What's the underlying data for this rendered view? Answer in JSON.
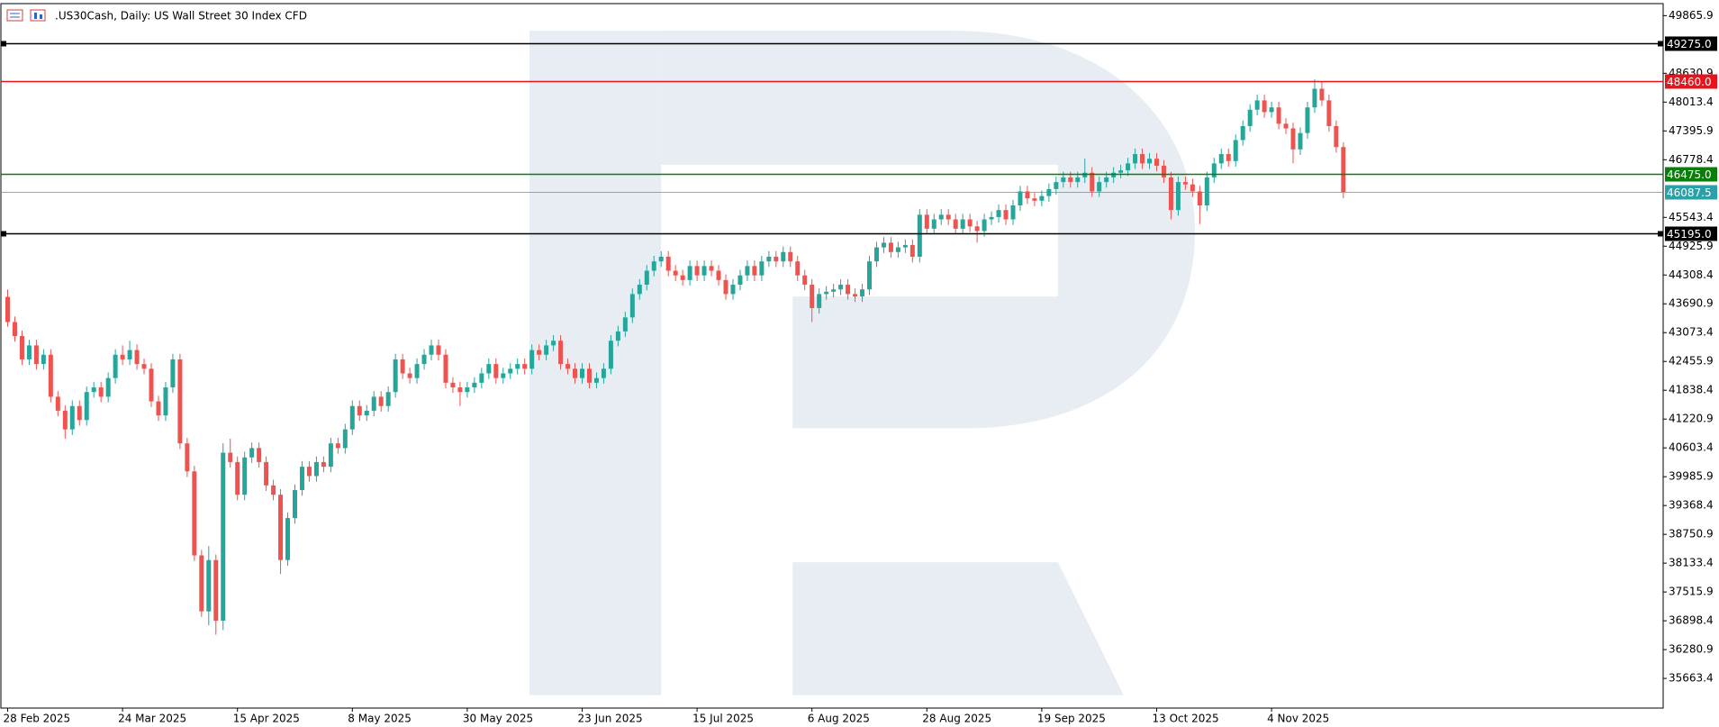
{
  "chart_data": {
    "type": "candlestick",
    "title": ".US30Cash, Daily:  US Wall Street 30 Index CFD",
    "up_color": "#26a69a",
    "down_color": "#ef5350",
    "ylim": [
      35028,
      50124
    ],
    "yticks": [
      35663.4,
      36280.9,
      36898.4,
      37515.9,
      38133.4,
      38750.9,
      39368.4,
      39985.9,
      40603.4,
      41220.9,
      41838.4,
      42455.9,
      43073.4,
      43690.9,
      44308.4,
      44925.9,
      45543.4,
      46778.4,
      47395.9,
      48013.4,
      48630.9,
      49865.9
    ],
    "levels": [
      {
        "value": 49275,
        "label": "49275.0",
        "color": "#000000"
      },
      {
        "value": 48460,
        "label": "48460.0",
        "color": "#e8141c"
      },
      {
        "value": 46475,
        "label": "46475.0",
        "color": "#0a7d0a"
      },
      {
        "value": 46087.5,
        "label": "46087.5",
        "color": "#2aa0a8"
      },
      {
        "value": 45195,
        "label": "45195.0",
        "color": "#000000"
      }
    ],
    "categories": [
      "28 Feb 2025",
      null,
      null,
      null,
      null,
      null,
      null,
      null,
      null,
      null,
      null,
      null,
      null,
      null,
      null,
      null,
      "24 Mar 2025",
      null,
      null,
      null,
      null,
      null,
      null,
      null,
      null,
      null,
      null,
      null,
      null,
      null,
      null,
      null,
      "15 Apr 2025",
      null,
      null,
      null,
      null,
      null,
      null,
      null,
      null,
      null,
      null,
      null,
      null,
      null,
      null,
      null,
      "8 May 2025",
      null,
      null,
      null,
      null,
      null,
      null,
      null,
      null,
      null,
      null,
      null,
      null,
      null,
      null,
      null,
      "30 May 2025",
      null,
      null,
      null,
      null,
      null,
      null,
      null,
      null,
      null,
      null,
      null,
      null,
      null,
      null,
      null,
      "23 Jun 2025",
      null,
      null,
      null,
      null,
      null,
      null,
      null,
      null,
      null,
      null,
      null,
      null,
      null,
      null,
      null,
      "15 Jul 2025",
      null,
      null,
      null,
      null,
      null,
      null,
      null,
      null,
      null,
      null,
      null,
      null,
      null,
      null,
      null,
      "6 Aug 2025",
      null,
      null,
      null,
      null,
      null,
      null,
      null,
      null,
      null,
      null,
      null,
      null,
      null,
      null,
      null,
      "28 Aug 2025",
      null,
      null,
      null,
      null,
      null,
      null,
      null,
      null,
      null,
      null,
      null,
      null,
      null,
      null,
      null,
      "19 Sep 2025",
      null,
      null,
      null,
      null,
      null,
      null,
      null,
      null,
      null,
      null,
      null,
      null,
      null,
      null,
      null,
      "13 Oct 2025",
      null,
      null,
      null,
      null,
      null,
      null,
      null,
      null,
      null,
      null,
      null,
      null,
      null,
      null,
      null,
      "4 Nov 2025",
      null,
      null,
      null,
      null,
      null,
      null,
      null,
      null,
      null,
      null
    ],
    "ohlc": [
      [
        43840,
        44000,
        43200,
        43300
      ],
      [
        43300,
        43420,
        42880,
        43000
      ],
      [
        43000,
        43120,
        42380,
        42500
      ],
      [
        42500,
        42920,
        42380,
        42800
      ],
      [
        42800,
        42920,
        42280,
        42400
      ],
      [
        42400,
        42720,
        42280,
        42600
      ],
      [
        42600,
        42720,
        41580,
        41700
      ],
      [
        41700,
        41820,
        41280,
        41400
      ],
      [
        41400,
        41520,
        40800,
        41000
      ],
      [
        41000,
        41620,
        40880,
        41500
      ],
      [
        41500,
        41620,
        41080,
        41200
      ],
      [
        41200,
        41920,
        41080,
        41800
      ],
      [
        41800,
        42020,
        41680,
        41900
      ],
      [
        41900,
        42020,
        41580,
        41700
      ],
      [
        41700,
        42220,
        41580,
        42100
      ],
      [
        42100,
        42720,
        41980,
        42600
      ],
      [
        42600,
        42800,
        42380,
        42500
      ],
      [
        42500,
        42900,
        42380,
        42700
      ],
      [
        42700,
        42820,
        42280,
        42400
      ],
      [
        42400,
        42520,
        42180,
        42300
      ],
      [
        42300,
        42420,
        41480,
        41600
      ],
      [
        41600,
        41720,
        41180,
        41300
      ],
      [
        41300,
        42020,
        41180,
        41900
      ],
      [
        41900,
        42620,
        41780,
        42500
      ],
      [
        42500,
        42620,
        40580,
        40700
      ],
      [
        40700,
        40820,
        39980,
        40100
      ],
      [
        40100,
        40220,
        38180,
        38300
      ],
      [
        38300,
        38420,
        36980,
        37100
      ],
      [
        37100,
        38500,
        36800,
        38200
      ],
      [
        38200,
        38320,
        36600,
        36900
      ],
      [
        36900,
        40700,
        36700,
        40500
      ],
      [
        40500,
        40800,
        40180,
        40300
      ],
      [
        40300,
        40420,
        39480,
        39600
      ],
      [
        39600,
        40520,
        39480,
        40400
      ],
      [
        40400,
        40720,
        40280,
        40600
      ],
      [
        40600,
        40720,
        40180,
        40300
      ],
      [
        40300,
        40420,
        39680,
        39800
      ],
      [
        39800,
        39920,
        39480,
        39600
      ],
      [
        39600,
        39720,
        37900,
        38200
      ],
      [
        38200,
        39220,
        38080,
        39100
      ],
      [
        39100,
        39820,
        38980,
        39700
      ],
      [
        39700,
        40320,
        39580,
        40200
      ],
      [
        40200,
        40320,
        39880,
        40000
      ],
      [
        40000,
        40420,
        39880,
        40300
      ],
      [
        40300,
        40420,
        40080,
        40200
      ],
      [
        40200,
        40820,
        40080,
        40700
      ],
      [
        40700,
        40820,
        40480,
        40600
      ],
      [
        40600,
        41120,
        40480,
        41000
      ],
      [
        41000,
        41620,
        40880,
        41500
      ],
      [
        41500,
        41620,
        41180,
        41300
      ],
      [
        41300,
        41520,
        41180,
        41400
      ],
      [
        41400,
        41820,
        41280,
        41700
      ],
      [
        41700,
        41820,
        41380,
        41500
      ],
      [
        41500,
        41920,
        41380,
        41800
      ],
      [
        41800,
        42620,
        41680,
        42500
      ],
      [
        42500,
        42620,
        42080,
        42200
      ],
      [
        42200,
        42320,
        41980,
        42100
      ],
      [
        42100,
        42520,
        41980,
        42400
      ],
      [
        42400,
        42720,
        42280,
        42600
      ],
      [
        42600,
        42920,
        42480,
        42800
      ],
      [
        42800,
        42920,
        42480,
        42600
      ],
      [
        42600,
        42720,
        41880,
        42000
      ],
      [
        42000,
        42120,
        41780,
        41900
      ],
      [
        41900,
        42020,
        41500,
        41800
      ],
      [
        41800,
        42020,
        41680,
        41900
      ],
      [
        41900,
        42120,
        41780,
        42000
      ],
      [
        42000,
        42320,
        41880,
        42200
      ],
      [
        42200,
        42520,
        42080,
        42400
      ],
      [
        42400,
        42520,
        41980,
        42100
      ],
      [
        42100,
        42320,
        41980,
        42200
      ],
      [
        42200,
        42420,
        42080,
        42300
      ],
      [
        42300,
        42520,
        42180,
        42400
      ],
      [
        42400,
        42520,
        42180,
        42300
      ],
      [
        42300,
        42820,
        42180,
        42700
      ],
      [
        42700,
        42820,
        42480,
        42600
      ],
      [
        42600,
        42920,
        42480,
        42800
      ],
      [
        42800,
        43020,
        42680,
        42900
      ],
      [
        42900,
        43020,
        42280,
        42400
      ],
      [
        42400,
        42520,
        42180,
        42300
      ],
      [
        42300,
        42420,
        41980,
        42100
      ],
      [
        42100,
        42420,
        41980,
        42300
      ],
      [
        42300,
        42420,
        41880,
        42000
      ],
      [
        42000,
        42220,
        41880,
        42100
      ],
      [
        42100,
        42420,
        41980,
        42300
      ],
      [
        42300,
        43020,
        42180,
        42900
      ],
      [
        42900,
        43220,
        42780,
        43100
      ],
      [
        43100,
        43520,
        42980,
        43400
      ],
      [
        43400,
        44020,
        43280,
        43900
      ],
      [
        43900,
        44220,
        43780,
        44100
      ],
      [
        44100,
        44520,
        43980,
        44400
      ],
      [
        44400,
        44720,
        44280,
        44600
      ],
      [
        44600,
        44820,
        44480,
        44700
      ],
      [
        44700,
        44820,
        44280,
        44400
      ],
      [
        44400,
        44520,
        44180,
        44300
      ],
      [
        44300,
        44420,
        44080,
        44200
      ],
      [
        44200,
        44620,
        44080,
        44500
      ],
      [
        44500,
        44620,
        44180,
        44300
      ],
      [
        44300,
        44620,
        44180,
        44500
      ],
      [
        44500,
        44620,
        44280,
        44400
      ],
      [
        44400,
        44520,
        44080,
        44200
      ],
      [
        44200,
        44320,
        43780,
        43900
      ],
      [
        43900,
        44220,
        43780,
        44100
      ],
      [
        44100,
        44420,
        43980,
        44300
      ],
      [
        44300,
        44620,
        44180,
        44500
      ],
      [
        44500,
        44620,
        44180,
        44300
      ],
      [
        44300,
        44720,
        44180,
        44600
      ],
      [
        44600,
        44820,
        44480,
        44700
      ],
      [
        44700,
        44820,
        44480,
        44600
      ],
      [
        44600,
        44920,
        44480,
        44800
      ],
      [
        44800,
        44920,
        44480,
        44600
      ],
      [
        44600,
        44720,
        44180,
        44300
      ],
      [
        44300,
        44420,
        43980,
        44100
      ],
      [
        44100,
        44220,
        43300,
        43600
      ],
      [
        43600,
        44020,
        43480,
        43900
      ],
      [
        43900,
        44070,
        43780,
        43950
      ],
      [
        43950,
        44120,
        43830,
        44000
      ],
      [
        44000,
        44220,
        43880,
        44100
      ],
      [
        44100,
        44220,
        43780,
        43900
      ],
      [
        43900,
        44020,
        43730,
        43850
      ],
      [
        43850,
        44120,
        43730,
        44000
      ],
      [
        44000,
        44720,
        43880,
        44600
      ],
      [
        44600,
        45020,
        44480,
        44900
      ],
      [
        44900,
        45120,
        44780,
        45000
      ],
      [
        45000,
        45120,
        44680,
        44800
      ],
      [
        44800,
        45020,
        44680,
        44900
      ],
      [
        44900,
        45070,
        44780,
        44950
      ],
      [
        44950,
        45070,
        44580,
        44700
      ],
      [
        44700,
        45720,
        44580,
        45600
      ],
      [
        45600,
        45720,
        45180,
        45300
      ],
      [
        45300,
        45620,
        45180,
        45500
      ],
      [
        45500,
        45720,
        45380,
        45600
      ],
      [
        45600,
        45720,
        45380,
        45500
      ],
      [
        45500,
        45620,
        45180,
        45300
      ],
      [
        45300,
        45620,
        45180,
        45500
      ],
      [
        45500,
        45620,
        45230,
        45350
      ],
      [
        45350,
        45470,
        45000,
        45250
      ],
      [
        45250,
        45620,
        45130,
        45500
      ],
      [
        45500,
        45670,
        45380,
        45550
      ],
      [
        45550,
        45820,
        45430,
        45700
      ],
      [
        45700,
        45820,
        45380,
        45500
      ],
      [
        45500,
        45920,
        45380,
        45800
      ],
      [
        45800,
        46220,
        45680,
        46100
      ],
      [
        46100,
        46220,
        45830,
        45950
      ],
      [
        45950,
        46070,
        45780,
        45900
      ],
      [
        45900,
        46120,
        45780,
        46000
      ],
      [
        46000,
        46270,
        45880,
        46150
      ],
      [
        46150,
        46420,
        46030,
        46300
      ],
      [
        46300,
        46520,
        46180,
        46400
      ],
      [
        46400,
        46520,
        46180,
        46300
      ],
      [
        46300,
        46520,
        46180,
        46400
      ],
      [
        46400,
        46800,
        46280,
        46500
      ],
      [
        46500,
        46620,
        45980,
        46100
      ],
      [
        46100,
        46420,
        45980,
        46300
      ],
      [
        46300,
        46520,
        46180,
        46400
      ],
      [
        46400,
        46620,
        46280,
        46500
      ],
      [
        46500,
        46670,
        46380,
        46550
      ],
      [
        46550,
        46820,
        46430,
        46700
      ],
      [
        46700,
        47020,
        46580,
        46900
      ],
      [
        46900,
        47020,
        46580,
        46700
      ],
      [
        46700,
        46920,
        46580,
        46800
      ],
      [
        46800,
        46920,
        46530,
        46650
      ],
      [
        46650,
        46770,
        46280,
        46400
      ],
      [
        46400,
        46520,
        45500,
        45700
      ],
      [
        45700,
        46420,
        45580,
        46300
      ],
      [
        46300,
        46420,
        46130,
        46250
      ],
      [
        46250,
        46370,
        45980,
        46100
      ],
      [
        46100,
        46220,
        45400,
        45800
      ],
      [
        45800,
        46520,
        45680,
        46400
      ],
      [
        46400,
        46820,
        46280,
        46700
      ],
      [
        46700,
        47020,
        46580,
        46900
      ],
      [
        46900,
        47020,
        46630,
        46750
      ],
      [
        46750,
        47320,
        46630,
        47200
      ],
      [
        47200,
        47620,
        47080,
        47500
      ],
      [
        47500,
        47970,
        47380,
        47850
      ],
      [
        47850,
        48170,
        47730,
        48050
      ],
      [
        48050,
        48170,
        47680,
        47800
      ],
      [
        47800,
        48020,
        47680,
        47900
      ],
      [
        47900,
        48020,
        47430,
        47550
      ],
      [
        47550,
        47670,
        47330,
        47450
      ],
      [
        47450,
        47570,
        46700,
        47000
      ],
      [
        47000,
        47470,
        46880,
        47350
      ],
      [
        47350,
        48020,
        47230,
        47900
      ],
      [
        47900,
        48500,
        47780,
        48300
      ],
      [
        48300,
        48450,
        47930,
        48050
      ],
      [
        48050,
        48170,
        47380,
        47500
      ],
      [
        47500,
        47620,
        46930,
        47050
      ],
      [
        47050,
        47150,
        45950,
        46087.5
      ]
    ]
  }
}
